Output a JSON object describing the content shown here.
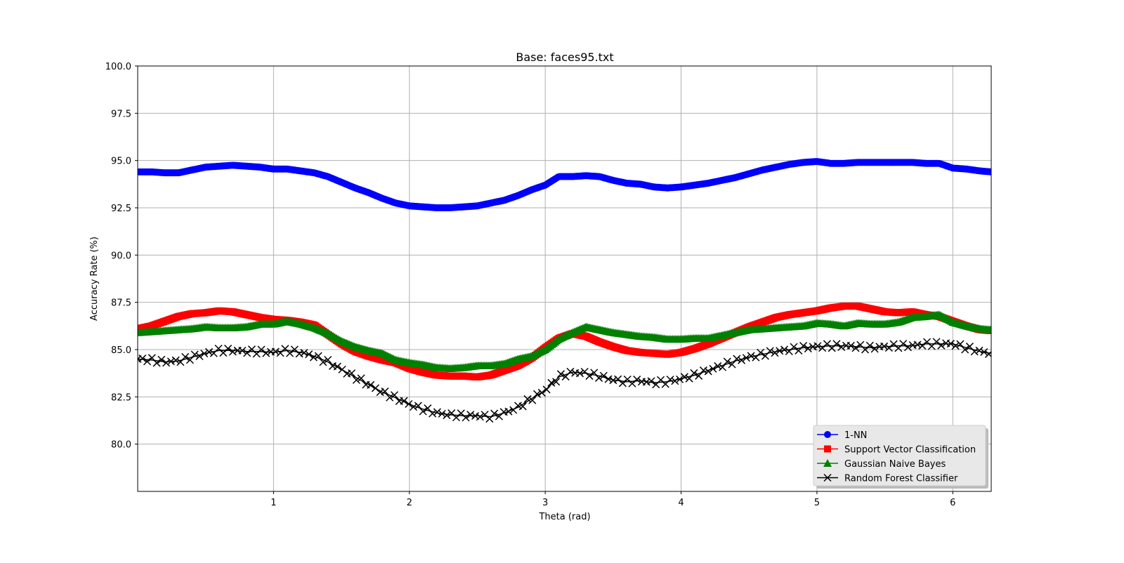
{
  "chart_data": {
    "type": "line",
    "title": "Base: faces95.txt",
    "xlabel": "Theta (rad)",
    "ylabel": "Accuracy Rate (%)",
    "xlim": [
      0,
      6.283
    ],
    "ylim": [
      77.5,
      100.0
    ],
    "xticks": [
      "1",
      "2",
      "3",
      "4",
      "5",
      "6"
    ],
    "yticks": [
      "80.0",
      "82.5",
      "85.0",
      "87.5",
      "90.0",
      "92.5",
      "95.0",
      "97.5",
      "100.0"
    ],
    "grid": true,
    "legend_position": "lower-right",
    "x": [
      0.0,
      0.1,
      0.2,
      0.3,
      0.4,
      0.5,
      0.6,
      0.7,
      0.8,
      0.9,
      1.0,
      1.1,
      1.2,
      1.3,
      1.4,
      1.5,
      1.6,
      1.7,
      1.8,
      1.9,
      2.0,
      2.1,
      2.2,
      2.3,
      2.4,
      2.5,
      2.6,
      2.7,
      2.8,
      2.9,
      3.0,
      3.1,
      3.2,
      3.3,
      3.4,
      3.5,
      3.6,
      3.7,
      3.8,
      3.9,
      4.0,
      4.1,
      4.2,
      4.3,
      4.4,
      4.5,
      4.6,
      4.7,
      4.8,
      4.9,
      5.0,
      5.1,
      5.2,
      5.3,
      5.4,
      5.5,
      5.6,
      5.7,
      5.8,
      5.9,
      6.0,
      6.1,
      6.2,
      6.28
    ],
    "series": [
      {
        "name": "1-NN",
        "color": "#0000ff",
        "marker": "circle",
        "values": [
          94.4,
          94.4,
          94.35,
          94.35,
          94.5,
          94.65,
          94.7,
          94.75,
          94.7,
          94.65,
          94.55,
          94.55,
          94.45,
          94.35,
          94.15,
          93.85,
          93.55,
          93.3,
          93.0,
          92.75,
          92.6,
          92.55,
          92.5,
          92.5,
          92.55,
          92.6,
          92.75,
          92.9,
          93.15,
          93.45,
          93.7,
          94.15,
          94.15,
          94.2,
          94.15,
          93.95,
          93.8,
          93.75,
          93.6,
          93.55,
          93.6,
          93.7,
          93.8,
          93.95,
          94.1,
          94.3,
          94.5,
          94.65,
          94.8,
          94.9,
          94.95,
          94.85,
          94.85,
          94.9,
          94.9,
          94.9,
          94.9,
          94.9,
          94.85,
          94.85,
          94.6,
          94.55,
          94.45,
          94.4
        ]
      },
      {
        "name": "Support Vector Classification",
        "color": "#ff0000",
        "marker": "square",
        "values": [
          86.1,
          86.25,
          86.5,
          86.75,
          86.9,
          86.95,
          87.05,
          87.0,
          86.85,
          86.7,
          86.6,
          86.55,
          86.45,
          86.3,
          85.8,
          85.3,
          84.9,
          84.65,
          84.45,
          84.3,
          84.0,
          83.8,
          83.65,
          83.6,
          83.6,
          83.55,
          83.65,
          83.9,
          84.15,
          84.55,
          85.1,
          85.6,
          85.85,
          85.7,
          85.4,
          85.15,
          84.95,
          84.85,
          84.8,
          84.75,
          84.85,
          85.05,
          85.3,
          85.6,
          85.9,
          86.2,
          86.45,
          86.7,
          86.85,
          86.95,
          87.05,
          87.2,
          87.3,
          87.3,
          87.15,
          87.0,
          86.95,
          87.0,
          86.85,
          86.75,
          86.5,
          86.25,
          86.05,
          86.0
        ]
      },
      {
        "name": "Gaussian Naive Bayes",
        "color": "#008000",
        "marker": "triangle",
        "values": [
          85.9,
          85.95,
          86.0,
          86.05,
          86.1,
          86.2,
          86.15,
          86.15,
          86.2,
          86.35,
          86.35,
          86.5,
          86.35,
          86.15,
          85.85,
          85.45,
          85.15,
          84.95,
          84.8,
          84.45,
          84.3,
          84.2,
          84.05,
          84.0,
          84.05,
          84.15,
          84.15,
          84.25,
          84.5,
          84.65,
          85.0,
          85.55,
          85.9,
          86.2,
          86.05,
          85.9,
          85.8,
          85.7,
          85.65,
          85.55,
          85.55,
          85.6,
          85.6,
          85.75,
          85.9,
          86.05,
          86.1,
          86.15,
          86.2,
          86.25,
          86.4,
          86.35,
          86.25,
          86.4,
          86.35,
          86.35,
          86.45,
          86.7,
          86.75,
          86.85,
          86.45,
          86.25,
          86.1,
          86.05
        ]
      },
      {
        "name": "Random Forest Classifier",
        "color": "#000000",
        "marker": "x",
        "values": [
          84.5,
          84.45,
          84.35,
          84.4,
          84.6,
          84.8,
          84.95,
          84.95,
          84.9,
          84.9,
          84.85,
          84.95,
          84.85,
          84.65,
          84.35,
          83.95,
          83.55,
          83.15,
          82.75,
          82.45,
          82.1,
          81.85,
          81.65,
          81.55,
          81.5,
          81.5,
          81.45,
          81.65,
          81.95,
          82.4,
          82.85,
          83.55,
          83.8,
          83.75,
          83.6,
          83.4,
          83.3,
          83.35,
          83.25,
          83.3,
          83.45,
          83.65,
          83.9,
          84.15,
          84.4,
          84.6,
          84.75,
          84.9,
          85.0,
          85.1,
          85.15,
          85.2,
          85.2,
          85.15,
          85.1,
          85.15,
          85.2,
          85.2,
          85.3,
          85.3,
          85.3,
          85.1,
          84.9,
          84.8
        ]
      }
    ]
  }
}
